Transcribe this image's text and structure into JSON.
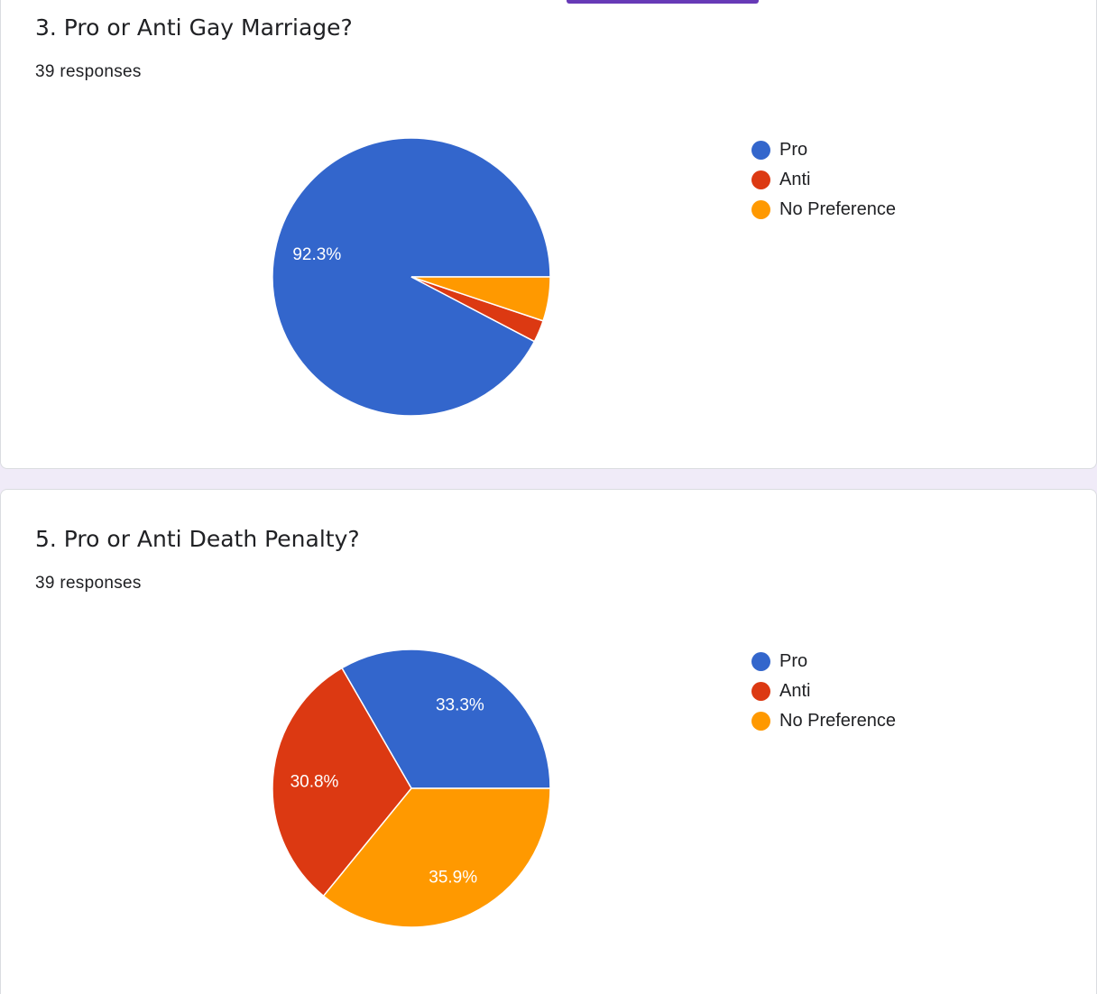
{
  "colors": {
    "pro": "#3366cc",
    "anti": "#dc3912",
    "no_preference": "#ff9900"
  },
  "cards": [
    {
      "title": "3. Pro or Anti Gay Marriage?",
      "responses": "39 responses",
      "legend": [
        {
          "label": "Pro",
          "color": "#3366cc"
        },
        {
          "label": "Anti",
          "color": "#dc3912"
        },
        {
          "label": "No Preference",
          "color": "#ff9900"
        }
      ]
    },
    {
      "title": "5. Pro or Anti Death Penalty?",
      "responses": "39 responses",
      "legend": [
        {
          "label": "Pro",
          "color": "#3366cc"
        },
        {
          "label": "Anti",
          "color": "#dc3912"
        },
        {
          "label": "No Preference",
          "color": "#ff9900"
        }
      ]
    }
  ],
  "chart_data": [
    {
      "type": "pie",
      "title": "3. Pro or Anti Gay Marriage?",
      "categories": [
        "Pro",
        "Anti",
        "No Preference"
      ],
      "values": [
        36,
        1,
        2
      ],
      "percent_labels": [
        "92.3%",
        "",
        ""
      ],
      "colors": [
        "#3366cc",
        "#dc3912",
        "#ff9900"
      ],
      "legend": "right"
    },
    {
      "type": "pie",
      "title": "5. Pro or Anti Death Penalty?",
      "categories": [
        "Pro",
        "Anti",
        "No Preference"
      ],
      "values": [
        13,
        12,
        14
      ],
      "percent_labels": [
        "33.3%",
        "30.8%",
        "35.9%"
      ],
      "colors": [
        "#3366cc",
        "#dc3912",
        "#ff9900"
      ],
      "legend": "right"
    }
  ]
}
